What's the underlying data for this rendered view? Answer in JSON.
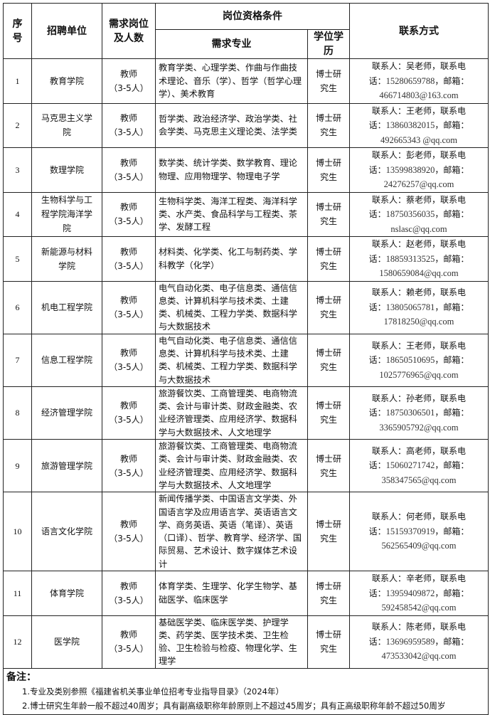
{
  "headers": {
    "seq": "序号",
    "unit": "招聘单位",
    "post": "需求岗位及人数",
    "qual": "岗位资格条件",
    "major": "需求专业",
    "degree": "学位学历",
    "contact": "联系方式"
  },
  "rows": [
    {
      "seq": "1",
      "unit": "教育学院",
      "post": "教师",
      "count": "（3-5人）",
      "major": "教育学类、心理学类、作曲与作曲技术理论、音乐（学）、哲学（哲学心理学）、美术教育",
      "degree": "博士研究生",
      "person": "联系人：吴老师，联系电话：",
      "phone": "15280659788",
      "mail_label": "，邮箱：",
      "email": "466714803@163.com"
    },
    {
      "seq": "2",
      "unit": "马克思主义学院",
      "post": "教师",
      "count": "（3-5人）",
      "major": "哲学类、政治经济学、政治学类、社会学类、马克思主义理论类、法学类",
      "degree": "博士研究生",
      "person": "联系人：王老师，联系电话：",
      "phone": "13860382015",
      "mail_label": "，邮箱：",
      "email": "492665343 @qq.com"
    },
    {
      "seq": "3",
      "unit": "数理学院",
      "post": "教师",
      "count": "（3-5人）",
      "major": "数学类、统计学类、数学教育、理论物理、应用物理学、物理电子学",
      "degree": "博士研究生",
      "person": "联系人：彭老师，联系电话：",
      "phone": "13599838920",
      "mail_label": "，邮箱：",
      "email": "24276257@qq.com"
    },
    {
      "seq": "4",
      "unit": "生物科学与工程学院海洋学院",
      "post": "教师",
      "count": "（3-5人）",
      "major": "生物科学类、海洋工程类、海洋科学类、水产类、食品科学与工程类、茶学、发酵工程",
      "degree": "博士研究生",
      "person": "联系人：蔡老师，联系电话：",
      "phone": "18750356035",
      "mail_label": "，邮箱：",
      "email": "nslasc@qq.com"
    },
    {
      "seq": "5",
      "unit": "新能源与材料学院",
      "post": "教师",
      "count": "（3-5人）",
      "major": "材料类、化学类、化工与制药类、学科教学（化学）",
      "degree": "博士研究生",
      "person": "联系人：赵老师，联系电话：",
      "phone": "18859313525",
      "mail_label": "，邮箱：",
      "email": "1580659084@qq.com"
    },
    {
      "seq": "6",
      "unit": "机电工程学院",
      "post": "教师",
      "count": "（3-5人）",
      "major": "电气自动化类、电子信息类、通信信息类、计算机科学与技术类、土建类、机械类、工程力学类、数据科学与大数据技术",
      "degree": "博士研究生",
      "person": "联系人：赖老师，联系电话：",
      "phone": "13805065781",
      "mail_label": "，邮箱：",
      "email": "17818250@qq.com"
    },
    {
      "seq": "7",
      "unit": "信息工程学院",
      "post": "教师",
      "count": "（3-5人）",
      "major": "电气自动化类、电子信息类、通信信息类、计算机科学与技术类、土建类、机械类、工程力学类、数据科学与大数据技术",
      "degree": "博士研究生",
      "person": "联系人：王老师，联系电话：",
      "phone": "18650510695",
      "mail_label": "，邮箱：",
      "email": "1025776965@qq.com"
    },
    {
      "seq": "8",
      "unit": "经济管理学院",
      "post": "教师",
      "count": "（3-5人）",
      "major": "旅游餐饮类、工商管理类、电商物流类、会计与审计类、财政金融类、农业经济管理类、应用经济学、数据科学与大数据技术、人文地理学",
      "degree": "博士研究生",
      "person": "联系人：孙老师，联系电话：",
      "phone": "18750306501",
      "mail_label": "，邮箱：",
      "email": "3365905792@qq.com"
    },
    {
      "seq": "9",
      "unit": "旅游管理学院",
      "post": "教师",
      "count": "（3-5人）",
      "major": "旅游餐饮类、工商管理类、电商物流类、会计与审计类、财政金融类、农业经济管理类、应用经济学、数据科学与大数据技术、人文地理学",
      "degree": "博士研究生",
      "person": "联系人：高老师，联系电话：",
      "phone": "15060271742",
      "mail_label": "，邮箱：",
      "email": "358347565@qq.com"
    },
    {
      "seq": "10",
      "unit": "语言文化学院",
      "post": "教师",
      "count": "（3-5人）",
      "major": "新闻传播学类、中国语言文学类、外国语言学及应用语言学、英语语言文学、商务英语、英语（笔译）、英语（口译）、哲学、教育学、经济学、国际贸易、艺术设计、数字媒体艺术设计",
      "degree": "博士研究生",
      "person": "联系人：何老师，联系电话：",
      "phone": "15159370919",
      "mail_label": "，邮箱：",
      "email": "562565409@qq.com"
    },
    {
      "seq": "11",
      "unit": "体育学院",
      "post": "教师",
      "count": "（3-5人）",
      "major": "体育学类、生理学、化学生物学、基础医学、临床医学",
      "degree": "博士研究生",
      "person": "联系人：辛老师，联系电话：",
      "phone": "13959409872",
      "mail_label": "，邮箱：",
      "email": "592458542@qq.com"
    },
    {
      "seq": "12",
      "unit": "医学院",
      "post": "教师",
      "count": "（3-5人）",
      "major": "基础医学类、临床医学类、护理学类、药学类、医学技术类、卫生检验、卫生检验与检疫、物理化学、生理学",
      "degree": "博士研究生",
      "person": "联系人：陈老师，联系电话：",
      "phone": "13696959589",
      "mail_label": "，邮箱：",
      "email": "473533042@qq.com"
    }
  ],
  "notes": {
    "title": "备注：",
    "items": [
      "1.专业及类别参照《福建省机关事业单位招考专业指导目录》（2024年）",
      "2.博士研究生年龄一般不超过40周岁；具有副高级职称年龄原则上不超过45周岁；具有正高级职称年龄不超过50周岁"
    ]
  }
}
